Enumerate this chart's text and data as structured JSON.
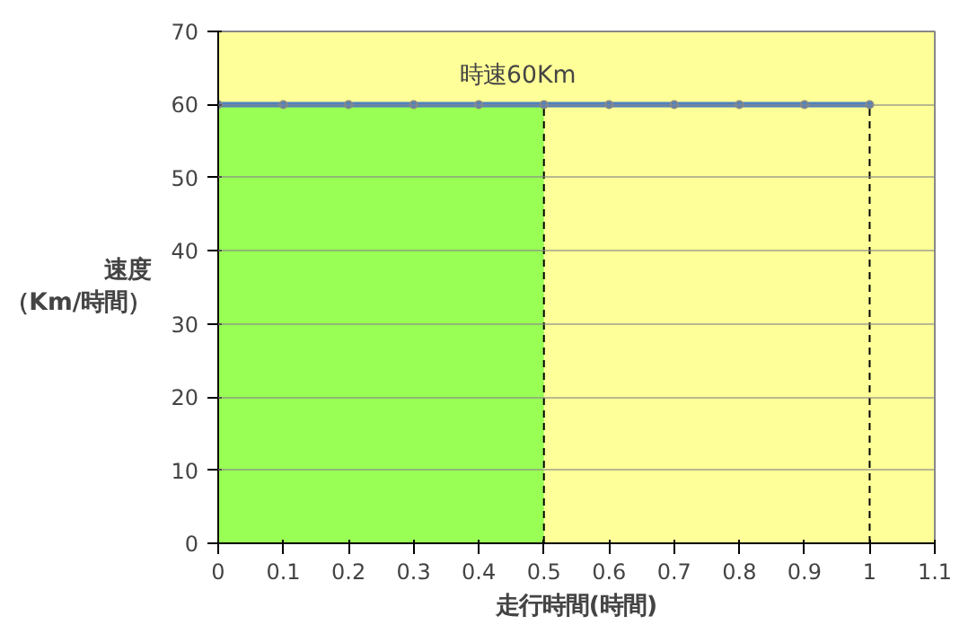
{
  "chart_data": {
    "type": "line",
    "xlabel": "走行時間(時間)",
    "ylabel": "速度（Km/時間）",
    "xlim": [
      0,
      1.1
    ],
    "xticks": [
      0,
      0.1,
      0.2,
      0.3,
      0.4,
      0.5,
      0.6,
      0.7,
      0.8,
      0.9,
      1,
      1.1
    ],
    "ylim": [
      0,
      70
    ],
    "yticks": [
      0,
      10,
      20,
      30,
      40,
      50,
      60,
      70
    ],
    "grid": "y",
    "annotations": [
      {
        "text": "時速60Km",
        "x": 0.46,
        "y": 60
      }
    ],
    "series": [
      {
        "type": "area",
        "color": "#99ff55",
        "x": [
          0,
          0.5
        ],
        "values": [
          60,
          60
        ],
        "marker": "none"
      },
      {
        "type": "line",
        "color": "#000000",
        "x": [
          0.5,
          0.5
        ],
        "values": [
          0,
          60
        ],
        "line_style": "dashed",
        "marker": "none"
      },
      {
        "type": "line",
        "color": "#000000",
        "x": [
          1,
          1
        ],
        "values": [
          0,
          60
        ],
        "line_style": "dashed",
        "marker": "none"
      },
      {
        "color": "#4f81bd",
        "x": [
          0,
          0.1,
          0.2,
          0.3,
          0.4,
          0.5,
          0.6,
          0.7,
          0.8,
          0.9,
          1
        ],
        "values": [
          60,
          60,
          60,
          60,
          60,
          60,
          60,
          60,
          60,
          60,
          60
        ],
        "line_style": "solid",
        "marker": "circle"
      }
    ]
  }
}
